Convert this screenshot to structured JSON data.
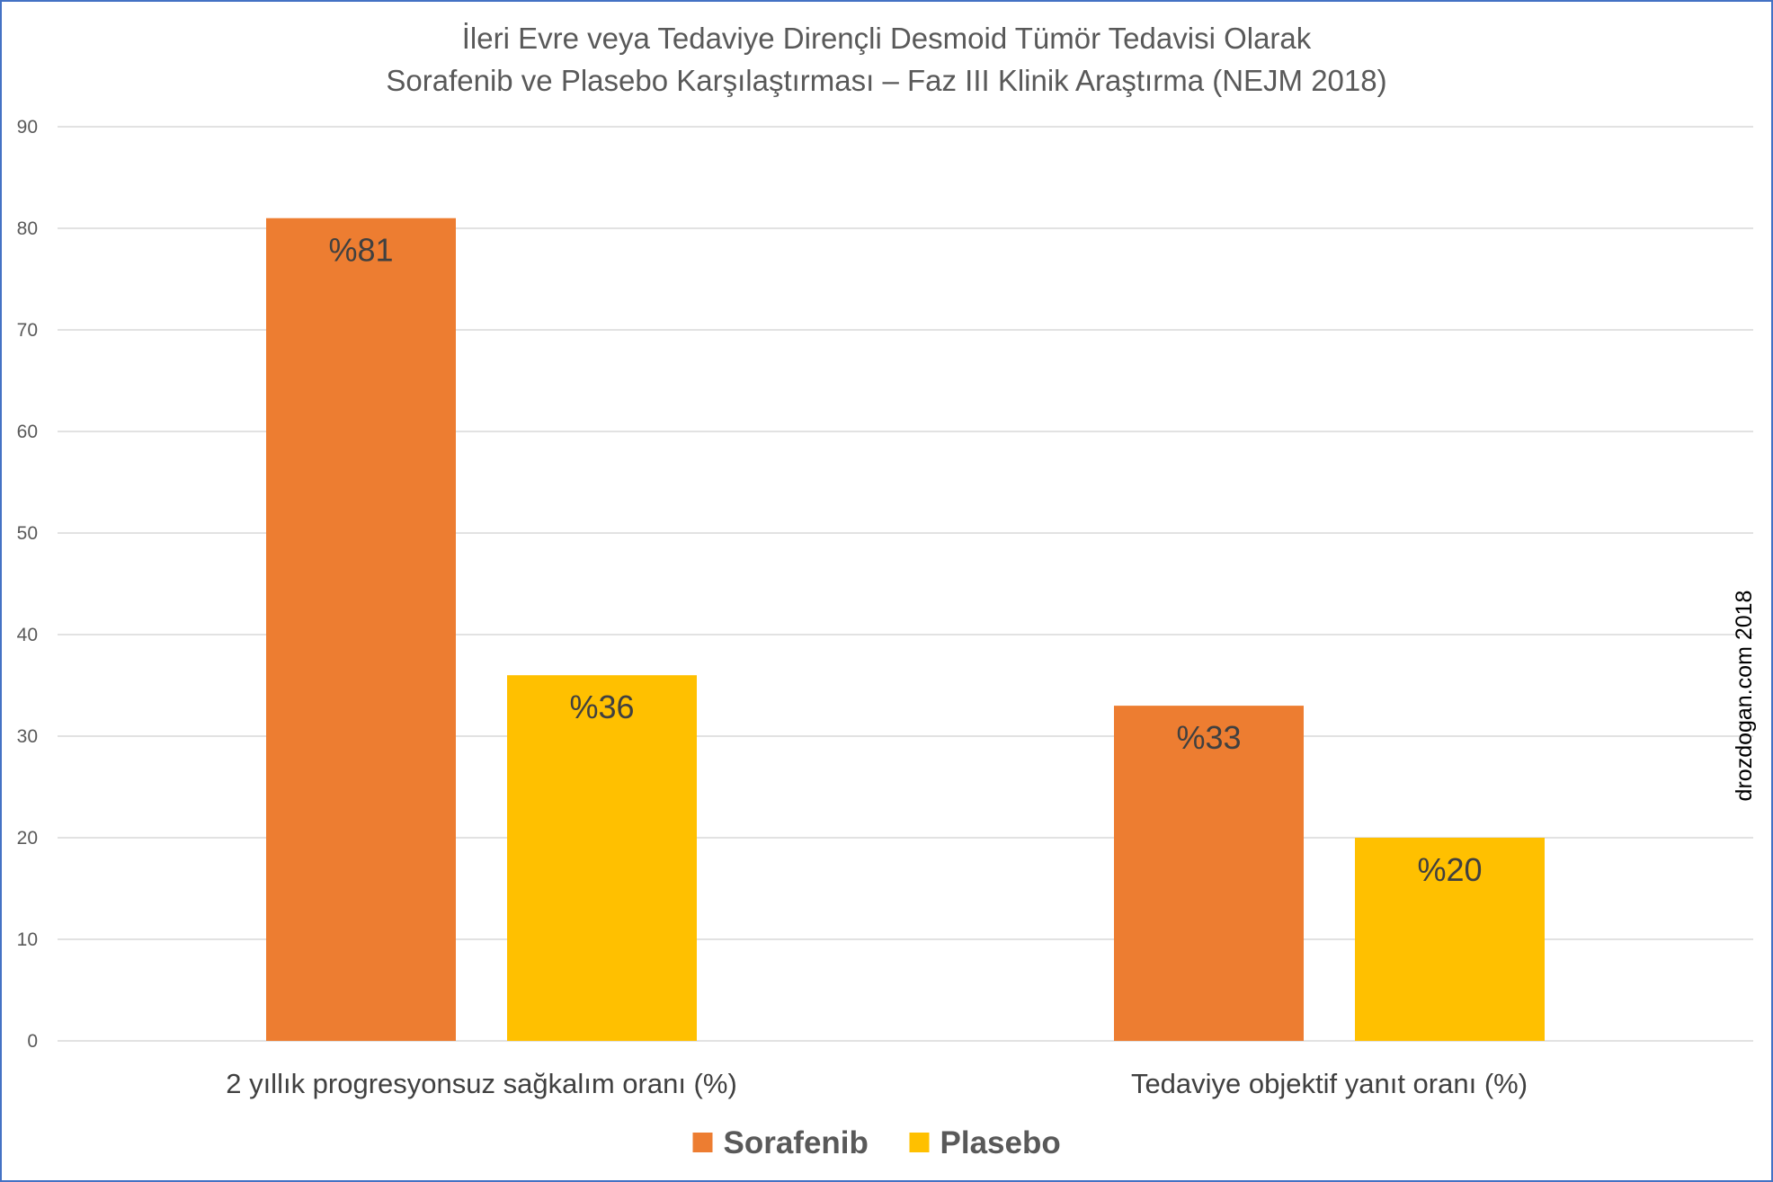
{
  "chart_data": {
    "type": "bar",
    "title": "İleri Evre veya Tedaviye Dirençli Desmoid Tümör Tedavisi Olarak",
    "subtitle": "Sorafenib ve Plasebo Karşılaştırması – Faz III Klinik Araştırma (NEJM 2018)",
    "categories": [
      "2 yıllık progresyonsuz sağkalım oranı (%)",
      "Tedaviye objektif yanıt oranı (%)"
    ],
    "series": [
      {
        "name": "Sorafenib",
        "values": [
          81,
          33
        ],
        "labels": [
          "%81",
          "%33"
        ],
        "color": "#ed7d31"
      },
      {
        "name": "Plasebo",
        "values": [
          36,
          20
        ],
        "labels": [
          "%36",
          "%20"
        ],
        "color": "#ffc000"
      }
    ],
    "ylim": [
      0,
      90
    ],
    "yticks": [
      0,
      10,
      20,
      30,
      40,
      50,
      60,
      70,
      80,
      90
    ],
    "grid": true,
    "legend_position": "bottom",
    "watermark": "drozdogan.com 2018"
  }
}
